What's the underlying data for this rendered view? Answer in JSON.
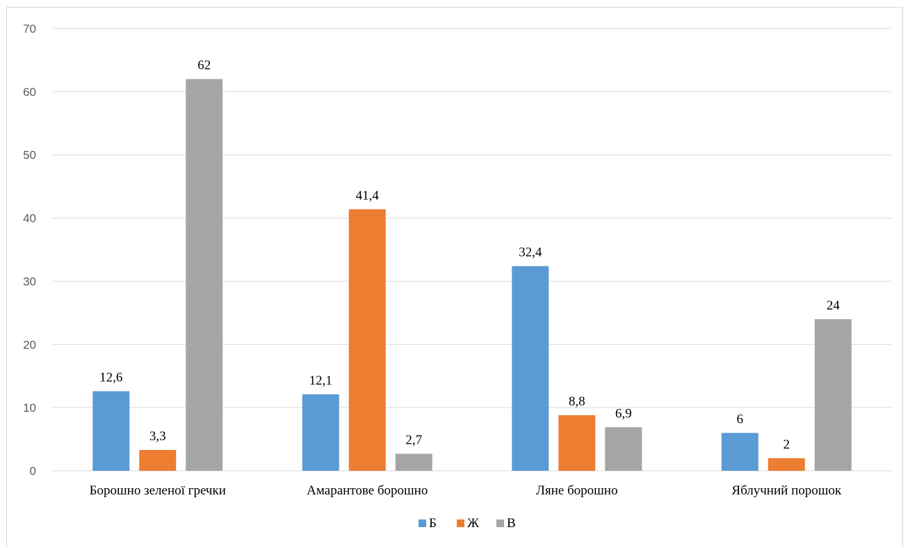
{
  "chart_data": {
    "type": "bar",
    "title": "",
    "xlabel": "",
    "ylabel": "",
    "ylim": [
      0,
      70
    ],
    "yticks": [
      0,
      10,
      20,
      30,
      40,
      50,
      60,
      70
    ],
    "grid": true,
    "legend_position": "bottom",
    "categories": [
      "Борошно зеленої гречки",
      "Амарантове борошно",
      "Ляне борошно",
      "Яблучний порошок"
    ],
    "series": [
      {
        "name": "Б",
        "color": "#5b9bd5",
        "values": [
          12.6,
          12.1,
          32.4,
          6
        ],
        "labels": [
          "12,6",
          "12,1",
          "32,4",
          "6"
        ]
      },
      {
        "name": "Ж",
        "color": "#ed7d31",
        "values": [
          3.3,
          41.4,
          8.8,
          2
        ],
        "labels": [
          "3,3",
          "41,4",
          "8,8",
          "2"
        ]
      },
      {
        "name": "В",
        "color": "#a5a5a5",
        "values": [
          62,
          2.7,
          6.9,
          24
        ],
        "labels": [
          "62",
          "2,7",
          "6,9",
          "24"
        ]
      }
    ]
  }
}
